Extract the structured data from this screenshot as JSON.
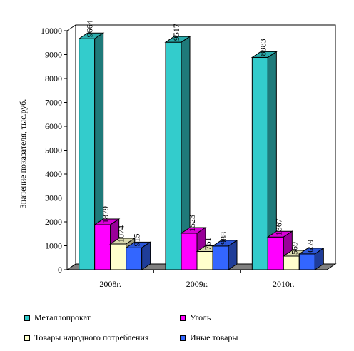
{
  "chart_data": {
    "type": "bar",
    "categories": [
      "2008г.",
      "2009г.",
      "2010г."
    ],
    "ylabel": "Значение показателя, тыс.руб.",
    "ylim": [
      0,
      10000
    ],
    "yticks": [
      0,
      1000,
      2000,
      3000,
      4000,
      5000,
      6000,
      7000,
      8000,
      9000,
      10000
    ],
    "grid": false,
    "legend_position": "bottom",
    "style": "3d-clustered-column",
    "series": [
      {
        "name": "Металлопрокат",
        "color": "#33CCCC",
        "values": [
          9664,
          9517,
          8883
        ],
        "labels": [
          "9664",
          "9517",
          "8883"
        ]
      },
      {
        "name": "Уголь",
        "color": "#FF00FF",
        "values": [
          1879,
          1523,
          1367
        ],
        "labels": [
          "1879",
          "1523",
          "1367"
        ]
      },
      {
        "name": "Товары народного потребления",
        "color": "#FFFFCC",
        "values": [
          1074,
          761,
          569
        ],
        "labels": [
          "1074",
          "761",
          "569"
        ]
      },
      {
        "name": "Иные товары",
        "color": "#3366FF",
        "values": [
          915,
          988,
          659
        ],
        "labels": [
          "915",
          "988",
          "659"
        ]
      }
    ]
  }
}
